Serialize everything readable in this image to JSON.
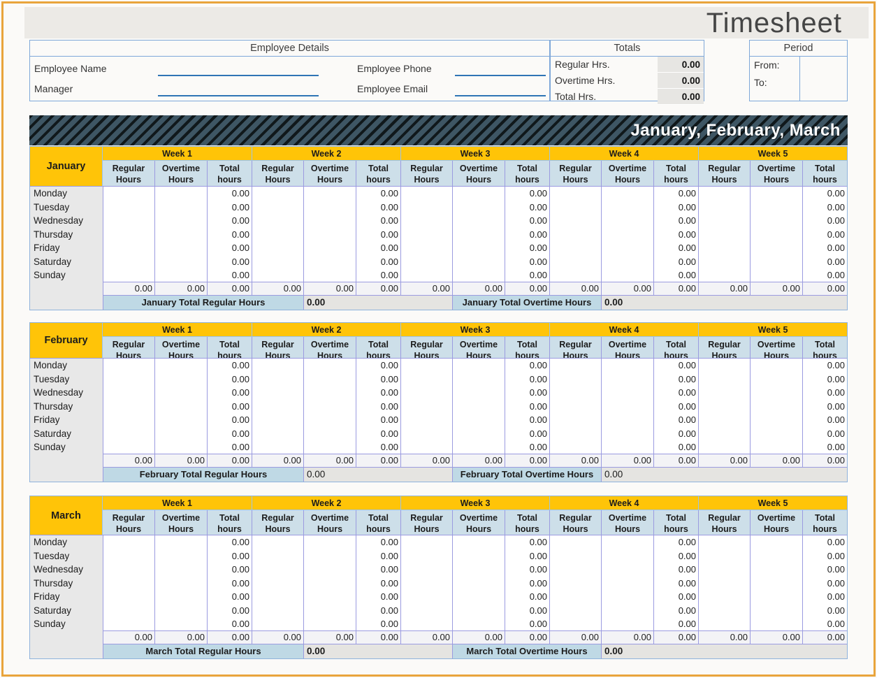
{
  "title": "Timesheet",
  "quarter_banner": "January, February, March",
  "employee_details": {
    "header": "Employee Details",
    "rows": [
      {
        "left_label": "Employee Name",
        "right_label": "Employee Phone"
      },
      {
        "left_label": "Manager",
        "right_label": "Employee Email"
      }
    ]
  },
  "totals": {
    "header": "Totals",
    "rows": [
      {
        "label": "Regular Hrs.",
        "value": "0.00"
      },
      {
        "label": "Overtime Hrs.",
        "value": "0.00"
      },
      {
        "label": "Total Hrs.",
        "value": "0.00"
      }
    ]
  },
  "period": {
    "header": "Period",
    "rows": [
      {
        "label": "From:",
        "value": ""
      },
      {
        "label": "To:",
        "value": ""
      }
    ]
  },
  "timesheet": {
    "weeks": [
      "Week 1",
      "Week 2",
      "Week 3",
      "Week 4",
      "Week 5"
    ],
    "columns": [
      "Regular Hours",
      "Overtime Hours",
      "Total hours"
    ],
    "days": [
      "Monday",
      "Tuesday",
      "Wednesday",
      "Thursday",
      "Friday",
      "Saturday",
      "Sunday"
    ],
    "day_total_value": "0.00",
    "week_total_value": "0.00",
    "months": [
      {
        "name": "January",
        "regular_label": "January Total Regular Hours",
        "regular_value": "0.00",
        "overtime_label": "January Total Overtime Hours",
        "overtime_value": "0.00",
        "totals_bold": true
      },
      {
        "name": "February",
        "regular_label": "February Total Regular Hours",
        "regular_value": "0.00",
        "overtime_label": "February Total Overtime Hours",
        "overtime_value": "0.00",
        "totals_bold": false
      },
      {
        "name": "March",
        "regular_label": "March Total Regular Hours",
        "regular_value": "0.00",
        "overtime_label": "March Total Overtime Hours",
        "overtime_value": "0.00",
        "totals_bold": true
      }
    ]
  },
  "colors": {
    "accent_yellow": "#FFC408",
    "banner_teal": "#3E5664",
    "frame_orange": "#E9A43C",
    "subheader_blue": "#CDDFE9",
    "month_label_blue": "#BFD9E5",
    "underline_blue": "#2F75B5"
  }
}
